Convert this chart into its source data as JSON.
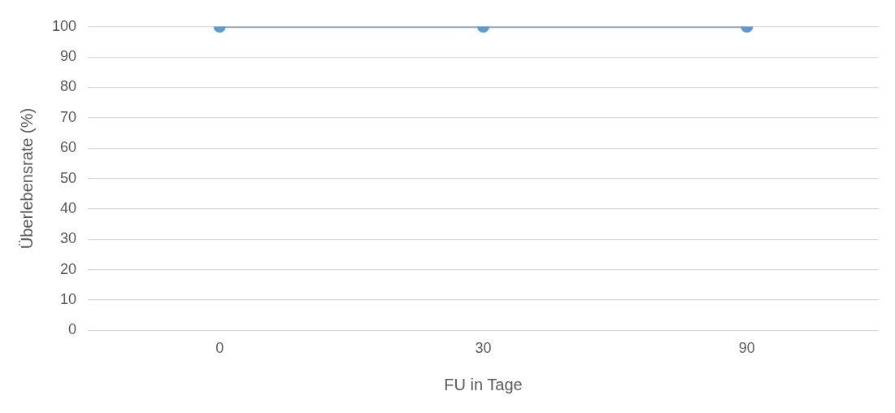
{
  "chart_data": {
    "type": "line",
    "xlabel": "FU in Tage",
    "ylabel": "Überlebensrate (%)",
    "categories": [
      "0",
      "30",
      "90"
    ],
    "series": [
      {
        "color": "#5b9bd5",
        "values": [
          100,
          100,
          100
        ]
      }
    ],
    "ylim": [
      0,
      100
    ],
    "yticks": [
      0,
      10,
      20,
      30,
      40,
      50,
      60,
      70,
      80,
      90,
      100
    ],
    "grid": "y",
    "legend": false,
    "marker": "circle",
    "line_style": "solid"
  }
}
